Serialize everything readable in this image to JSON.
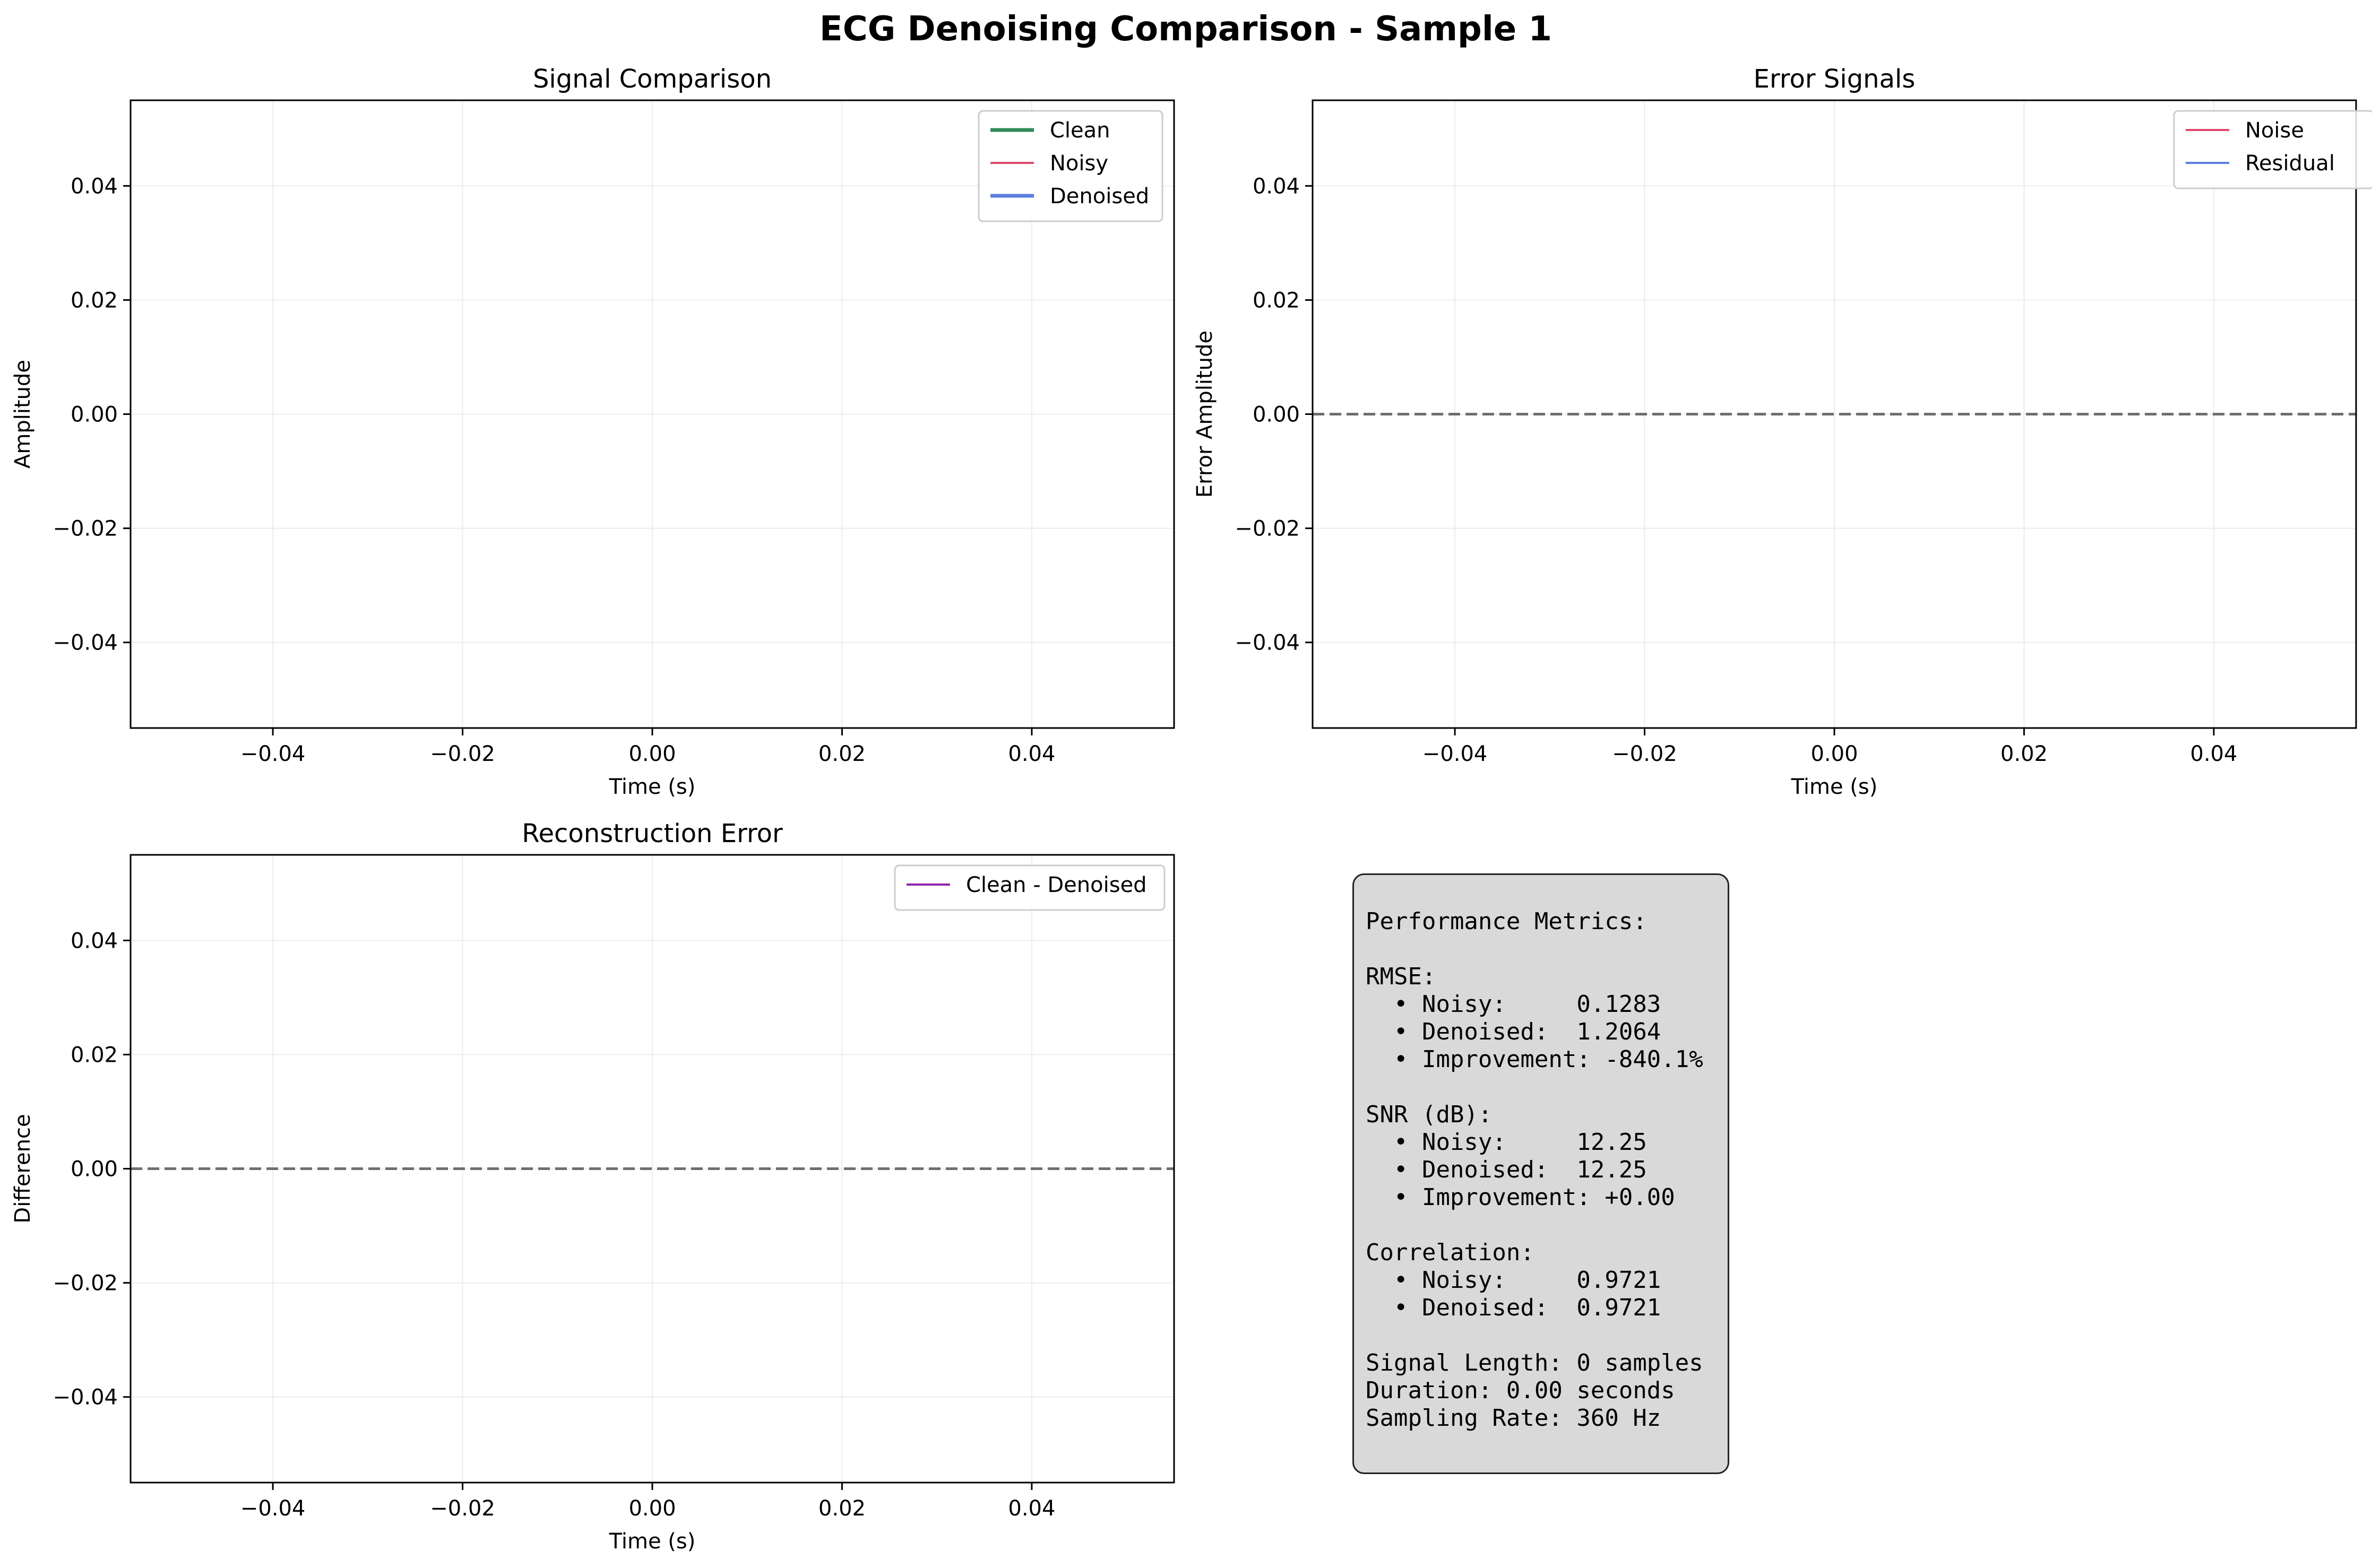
{
  "figure": {
    "title": "ECG Denoising Comparison - Sample 1"
  },
  "chart_data": [
    {
      "id": "signal",
      "type": "line",
      "title": "Signal Comparison",
      "xlabel": "Time (s)",
      "ylabel": "Amplitude",
      "xlim": [
        -0.055,
        0.055
      ],
      "ylim": [
        -0.055,
        0.055
      ],
      "xticks": [
        -0.04,
        -0.02,
        0.0,
        0.02,
        0.04
      ],
      "yticks": [
        -0.04,
        -0.02,
        0.0,
        0.02,
        0.04
      ],
      "xtick_labels": [
        "−0.04",
        "−0.02",
        "0.00",
        "0.02",
        "0.04"
      ],
      "ytick_labels": [
        "−0.04",
        "−0.02",
        "0.00",
        "0.02",
        "0.04"
      ],
      "grid": true,
      "zero_line": false,
      "legend_position": "top-right",
      "series": [
        {
          "name": "Clean",
          "color": "#2e8b57",
          "x": [],
          "y": []
        },
        {
          "name": "Noisy",
          "color": "#dc4a6a",
          "x": [],
          "y": []
        },
        {
          "name": "Denoised",
          "color": "#5b7fdf",
          "x": [],
          "y": []
        }
      ]
    },
    {
      "id": "error",
      "type": "line",
      "title": "Error Signals",
      "xlabel": "Time (s)",
      "ylabel": "Error Amplitude",
      "xlim": [
        -0.055,
        0.055
      ],
      "ylim": [
        -0.055,
        0.055
      ],
      "xticks": [
        -0.04,
        -0.02,
        0.0,
        0.02,
        0.04
      ],
      "yticks": [
        -0.04,
        -0.02,
        0.0,
        0.02,
        0.04
      ],
      "xtick_labels": [
        "−0.04",
        "−0.02",
        "0.00",
        "0.02",
        "0.04"
      ],
      "ytick_labels": [
        "−0.04",
        "−0.02",
        "0.00",
        "0.02",
        "0.04"
      ],
      "grid": true,
      "zero_line": true,
      "legend_position": "top-right",
      "series": [
        {
          "name": "Noise",
          "color": "#dc4a6a",
          "x": [],
          "y": []
        },
        {
          "name": "Residual",
          "color": "#5b7fdf",
          "x": [],
          "y": []
        }
      ]
    },
    {
      "id": "recon",
      "type": "line",
      "title": "Reconstruction Error",
      "xlabel": "Time (s)",
      "ylabel": "Difference",
      "xlim": [
        -0.055,
        0.055
      ],
      "ylim": [
        -0.055,
        0.055
      ],
      "xticks": [
        -0.04,
        -0.02,
        0.0,
        0.02,
        0.04
      ],
      "yticks": [
        -0.04,
        -0.02,
        0.0,
        0.02,
        0.04
      ],
      "xtick_labels": [
        "−0.04",
        "−0.02",
        "0.00",
        "0.02",
        "0.04"
      ],
      "ytick_labels": [
        "−0.04",
        "−0.02",
        "0.00",
        "0.02",
        "0.04"
      ],
      "grid": true,
      "zero_line": true,
      "legend_position": "top-right",
      "series": [
        {
          "name": "Clean - Denoised",
          "color": "#8e24aa",
          "x": [],
          "y": []
        }
      ]
    }
  ],
  "metrics": {
    "lines": [
      "Performance Metrics:",
      "",
      "RMSE:",
      "  • Noisy:     0.1283",
      "  • Denoised:  1.2064",
      "  • Improvement: -840.1%",
      "",
      "SNR (dB):",
      "  • Noisy:     12.25",
      "  • Denoised:  12.25",
      "  • Improvement: +0.00",
      "",
      "Correlation:",
      "  • Noisy:     0.9721",
      "  • Denoised:  0.9721",
      "",
      "Signal Length: 0 samples",
      "Duration: 0.00 seconds",
      "Sampling Rate: 360 Hz"
    ]
  }
}
